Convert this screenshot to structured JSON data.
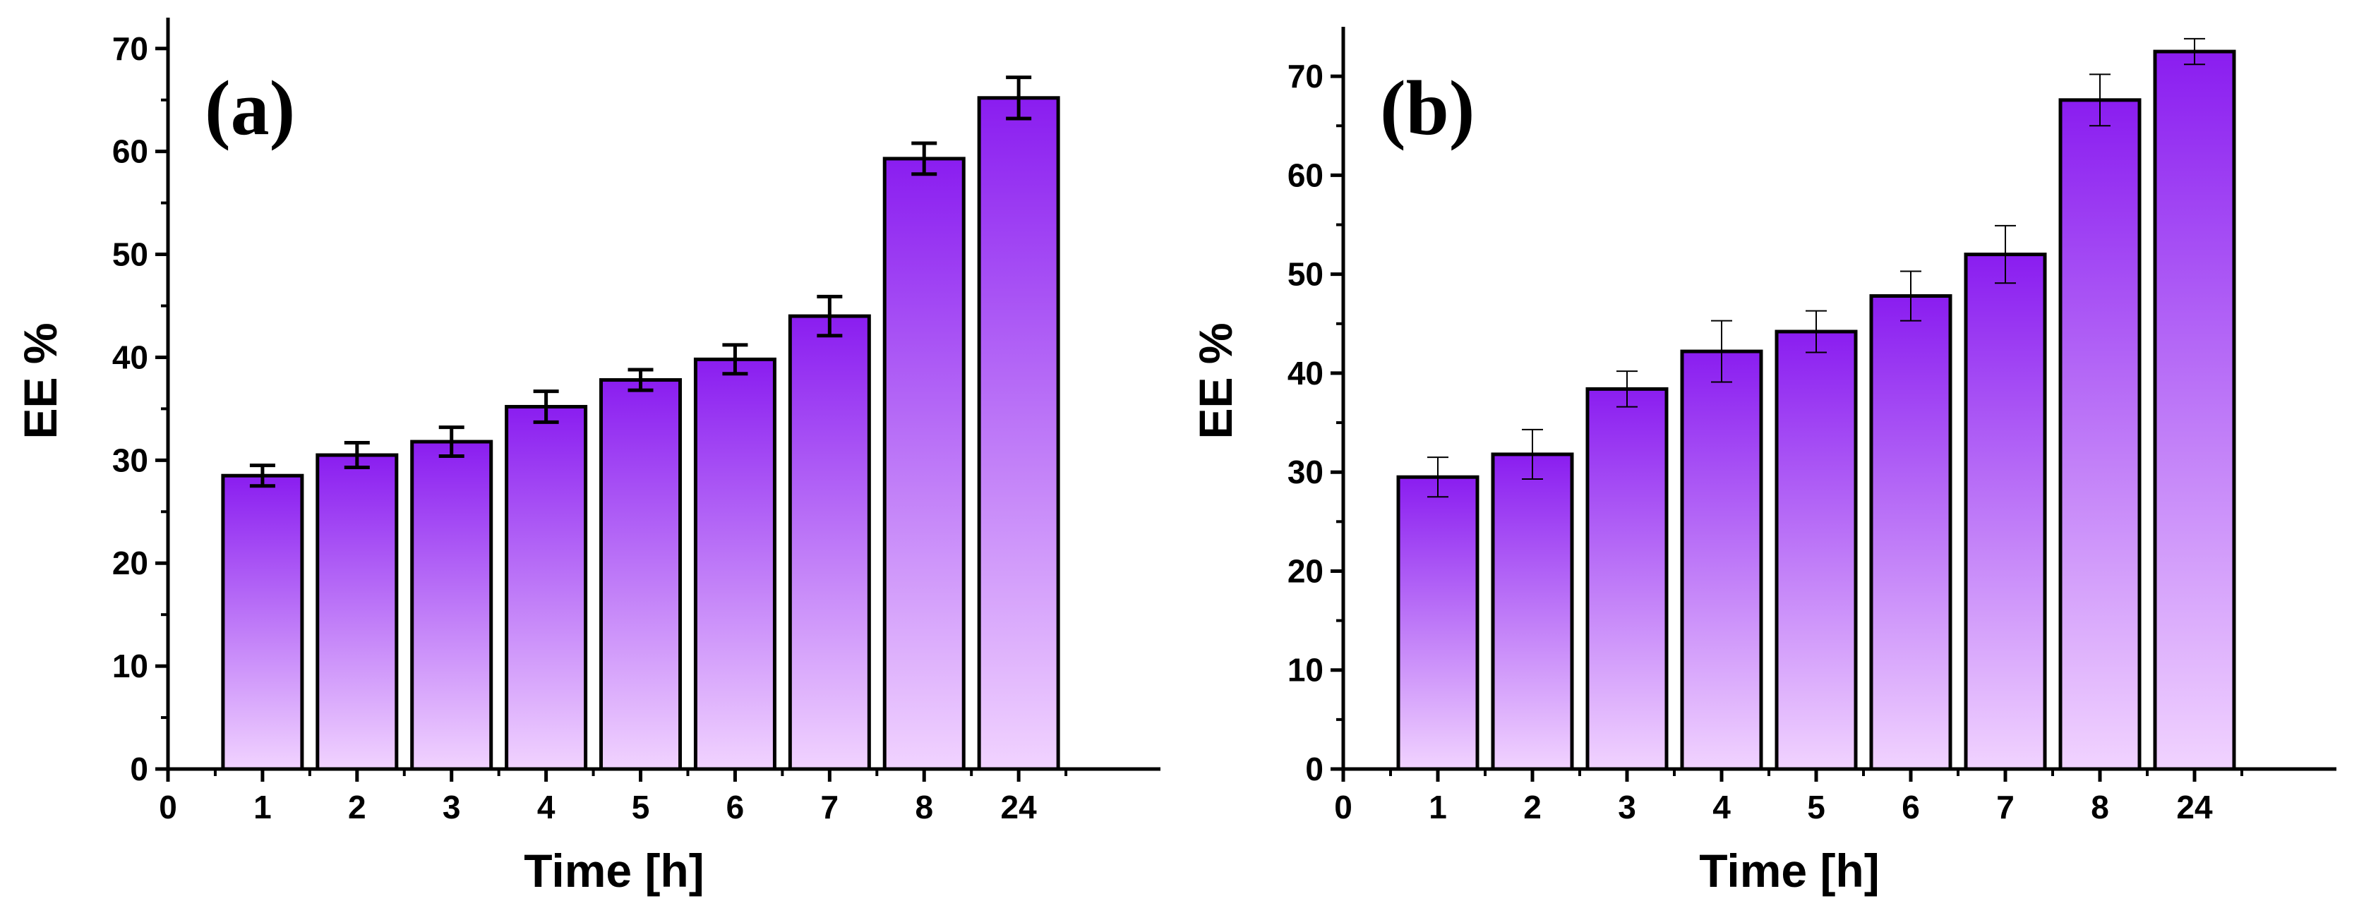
{
  "chart_data": [
    {
      "type": "bar",
      "panel_label": "(a)",
      "xlabel": "Time [h]",
      "ylabel": "EE %",
      "categories": [
        "1",
        "2",
        "3",
        "4",
        "5",
        "6",
        "7",
        "8",
        "24"
      ],
      "values": [
        28.5,
        30.5,
        31.8,
        35.2,
        37.8,
        39.8,
        44.0,
        59.3,
        65.2
      ],
      "errors": [
        1.0,
        1.2,
        1.4,
        1.5,
        1.0,
        1.4,
        1.9,
        1.5,
        2.0
      ],
      "x_ticks": [
        "0",
        "1",
        "2",
        "3",
        "4",
        "5",
        "6",
        "7",
        "8",
        "24"
      ],
      "y_ticks": [
        "0",
        "10",
        "20",
        "30",
        "40",
        "50",
        "60",
        "70"
      ],
      "ylim": [
        0,
        73
      ],
      "error_bar_style": "bold",
      "grid": false,
      "legend": "none",
      "colors": {
        "top": "#8a1df0",
        "bottom": "#f1d3ff",
        "outline": "#000000"
      }
    },
    {
      "type": "bar",
      "panel_label": "(b)",
      "xlabel": "Time [h]",
      "ylabel": "EE %",
      "categories": [
        "1",
        "2",
        "3",
        "4",
        "5",
        "6",
        "7",
        "8",
        "24"
      ],
      "values": [
        29.5,
        31.8,
        38.4,
        42.2,
        44.2,
        47.8,
        52.0,
        67.6,
        72.5
      ],
      "errors": [
        2.0,
        2.5,
        1.8,
        3.1,
        2.1,
        2.5,
        2.9,
        2.6,
        1.3
      ],
      "x_ticks": [
        "0",
        "1",
        "2",
        "3",
        "4",
        "5",
        "6",
        "7",
        "8",
        "24"
      ],
      "y_ticks": [
        "0",
        "10",
        "20",
        "30",
        "40",
        "50",
        "60",
        "70"
      ],
      "ylim": [
        0,
        75
      ],
      "error_bar_style": "thin",
      "grid": false,
      "legend": "none",
      "colors": {
        "top": "#8a1df0",
        "bottom": "#f1d3ff",
        "outline": "#000000"
      }
    }
  ]
}
